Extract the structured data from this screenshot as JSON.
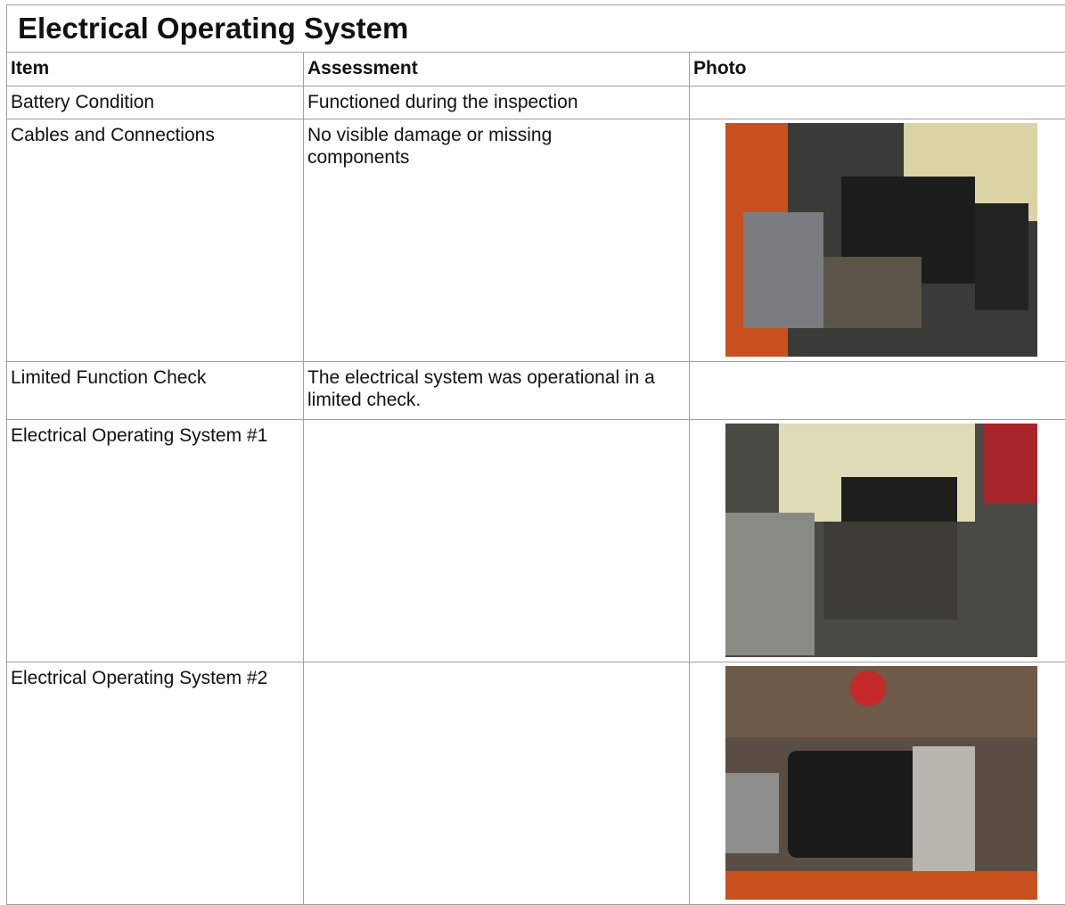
{
  "header": {
    "title": "Electrical Operating System"
  },
  "table": {
    "headers": [
      "Item",
      "Assessment",
      "Photo"
    ],
    "rows": [
      [
        "Battery Condition",
        "Functioned during the inspection"
      ],
      [
        "Cables and Connections",
        "No visible damage or missing components"
      ],
      [
        "Limited Function Check",
        "The electrical system was operational in a limited check."
      ],
      [
        "Electrical Operating System #1",
        ""
      ],
      [
        "Electrical Operating System #2",
        ""
      ]
    ]
  }
}
